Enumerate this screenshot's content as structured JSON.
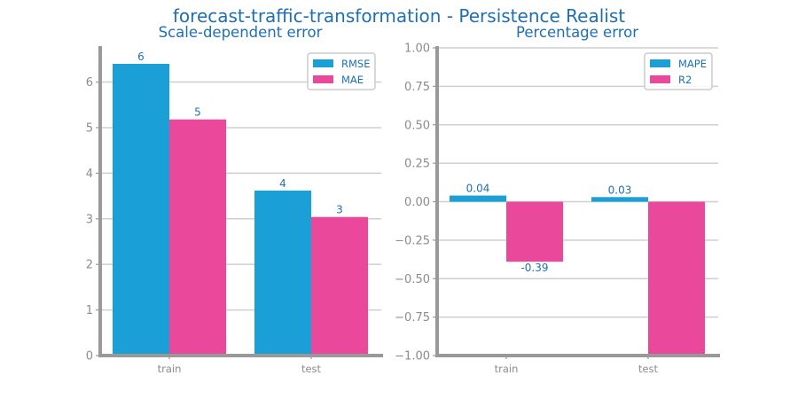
{
  "title": "forecast-traffic-transformation - Persistence Realist",
  "chart_data": [
    {
      "type": "bar",
      "title": "Scale-dependent error",
      "categories": [
        "train",
        "test"
      ],
      "series": [
        {
          "name": "RMSE",
          "values": [
            6.4,
            3.62
          ],
          "labels": [
            "6",
            "4"
          ],
          "color": "#1a9fd6"
        },
        {
          "name": "MAE",
          "values": [
            5.18,
            3.04
          ],
          "labels": [
            "5",
            "3"
          ],
          "color": "#ea489b"
        }
      ],
      "ylim": [
        0,
        6.75
      ],
      "yticks": [
        0,
        1,
        2,
        3,
        4,
        5,
        6
      ],
      "ytick_labels": [
        "0",
        "1",
        "2",
        "3",
        "4",
        "5",
        "6"
      ],
      "grid": true,
      "legend": "top-right"
    },
    {
      "type": "bar",
      "title": "Percentage error",
      "categories": [
        "train",
        "test"
      ],
      "series": [
        {
          "name": "MAPE",
          "values": [
            0.04,
            0.03
          ],
          "labels": [
            "0.04",
            "0.03"
          ],
          "color": "#1a9fd6"
        },
        {
          "name": "R2",
          "values": [
            -0.39,
            -1.0
          ],
          "labels": [
            "-0.39",
            ""
          ],
          "color": "#ea489b"
        }
      ],
      "ylim": [
        -1.0,
        1.0
      ],
      "yticks": [
        -1.0,
        -0.75,
        -0.5,
        -0.25,
        0.0,
        0.25,
        0.5,
        0.75,
        1.0
      ],
      "ytick_labels": [
        "−1.00",
        "−0.75",
        "−0.50",
        "−0.25",
        "0.00",
        "0.25",
        "0.50",
        "0.75",
        "1.00"
      ],
      "grid": true,
      "legend": "top-right"
    }
  ]
}
